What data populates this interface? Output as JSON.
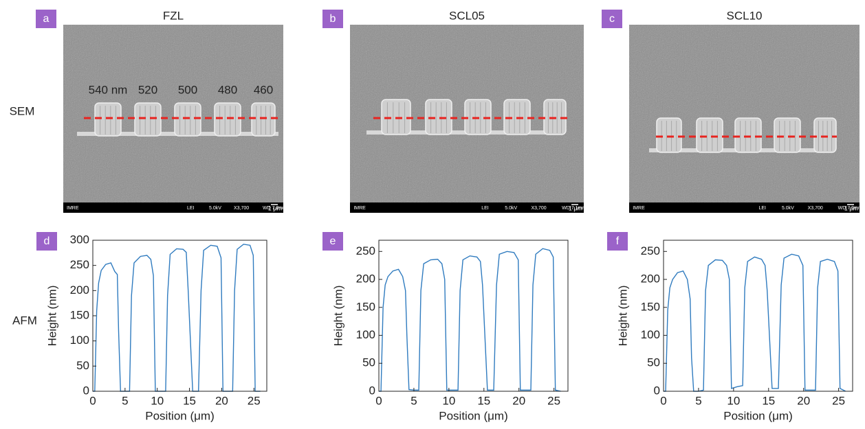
{
  "row_labels": [
    "SEM",
    "AFM"
  ],
  "sem_panels": [
    {
      "label": "a",
      "title": "FZL",
      "info": [
        "IMRE",
        "LEI",
        "5.0kV",
        "X3,700",
        "WD 7.0mm"
      ],
      "scale_bar": "1 μm"
    },
    {
      "label": "b",
      "title": "SCL05",
      "info": [
        "IMRE",
        "LEI",
        "5.0kV",
        "X3,700",
        "WD 7.1mm"
      ],
      "scale_bar": "1 μm"
    },
    {
      "label": "c",
      "title": "SCL10",
      "info": [
        "IMRE",
        "LEI",
        "5.0kV",
        "X3,700",
        "WD 7.0mm"
      ],
      "scale_bar": "1 μm"
    }
  ],
  "sem_annotations": [
    "540 nm",
    "520",
    "500",
    "480",
    "460"
  ],
  "afm_panel_labels": [
    "d",
    "e",
    "f"
  ],
  "chart_data": [
    {
      "type": "line",
      "xlabel": "Position (μm)",
      "ylabel": "Height (nm)",
      "color": "#2f7bbf",
      "xlim": [
        0,
        27
      ],
      "ylim": [
        0,
        300
      ],
      "xticks": [
        0,
        5,
        10,
        15,
        20,
        25
      ],
      "yticks": [
        0,
        50,
        100,
        150,
        200,
        250,
        300
      ],
      "x": [
        0,
        0.3,
        0.6,
        0.9,
        1.3,
        2.0,
        2.8,
        3.4,
        3.8,
        4.0,
        4.3,
        5.0,
        5.7,
        6.0,
        6.4,
        7.4,
        8.4,
        9.0,
        9.4,
        9.7,
        10.5,
        11.3,
        11.6,
        12.0,
        13.0,
        14.0,
        14.5,
        14.8,
        15.5,
        16.4,
        16.8,
        17.2,
        18.3,
        19.3,
        19.9,
        20.2,
        21.0,
        21.7,
        22.0,
        22.4,
        23.4,
        24.4,
        24.9,
        25.2,
        26.0
      ],
      "values": [
        0,
        0,
        160,
        215,
        240,
        252,
        255,
        238,
        232,
        120,
        0,
        0,
        0,
        190,
        255,
        268,
        270,
        262,
        230,
        0,
        0,
        0,
        190,
        272,
        283,
        282,
        276,
        200,
        0,
        0,
        200,
        280,
        290,
        288,
        265,
        0,
        0,
        0,
        200,
        282,
        292,
        290,
        270,
        0,
        0
      ]
    },
    {
      "type": "line",
      "xlabel": "Position (μm)",
      "ylabel": "Height (nm)",
      "color": "#2f7bbf",
      "xlim": [
        0,
        27
      ],
      "ylim": [
        0,
        270
      ],
      "xticks": [
        0,
        5,
        10,
        15,
        20,
        25
      ],
      "yticks": [
        0,
        50,
        100,
        150,
        200,
        250
      ],
      "x": [
        0,
        0.3,
        0.6,
        0.9,
        1.3,
        2.0,
        2.8,
        3.4,
        3.8,
        4.0,
        4.3,
        5.0,
        5.7,
        6.0,
        6.4,
        7.4,
        8.4,
        9.0,
        9.4,
        9.7,
        10.5,
        11.3,
        11.6,
        12.0,
        13.0,
        14.0,
        14.5,
        14.8,
        15.5,
        16.4,
        16.8,
        17.2,
        18.3,
        19.3,
        19.9,
        20.2,
        21.0,
        21.7,
        22.0,
        22.4,
        23.4,
        24.4,
        24.9,
        25.2,
        26.0
      ],
      "values": [
        0,
        0,
        150,
        190,
        205,
        215,
        218,
        205,
        180,
        100,
        3,
        2,
        2,
        180,
        228,
        235,
        236,
        228,
        200,
        2,
        2,
        2,
        180,
        235,
        242,
        240,
        232,
        190,
        2,
        2,
        190,
        245,
        250,
        248,
        235,
        2,
        2,
        2,
        190,
        245,
        255,
        252,
        240,
        2,
        0
      ]
    },
    {
      "type": "line",
      "xlabel": "Position (μm)",
      "ylabel": "Height (nm)",
      "color": "#2f7bbf",
      "xlim": [
        0,
        27
      ],
      "ylim": [
        0,
        270
      ],
      "xticks": [
        0,
        5,
        10,
        15,
        20,
        25
      ],
      "yticks": [
        0,
        50,
        100,
        150,
        200,
        250
      ],
      "x": [
        0,
        0.3,
        0.6,
        0.9,
        1.3,
        2.0,
        2.8,
        3.4,
        3.8,
        4.0,
        4.3,
        5.0,
        5.7,
        6.0,
        6.4,
        7.4,
        8.4,
        9.0,
        9.4,
        9.7,
        10.5,
        11.3,
        11.6,
        12.0,
        13.0,
        14.0,
        14.5,
        14.8,
        15.5,
        16.4,
        16.8,
        17.2,
        18.3,
        19.3,
        19.9,
        20.2,
        21.0,
        21.7,
        22.0,
        22.4,
        23.4,
        24.4,
        24.9,
        25.2,
        26.0
      ],
      "values": [
        0,
        0,
        145,
        185,
        200,
        212,
        215,
        200,
        165,
        60,
        0,
        0,
        2,
        180,
        225,
        235,
        234,
        225,
        200,
        5,
        8,
        10,
        185,
        232,
        240,
        236,
        225,
        180,
        5,
        5,
        190,
        238,
        245,
        242,
        225,
        2,
        2,
        2,
        185,
        232,
        236,
        232,
        215,
        5,
        0
      ]
    }
  ]
}
